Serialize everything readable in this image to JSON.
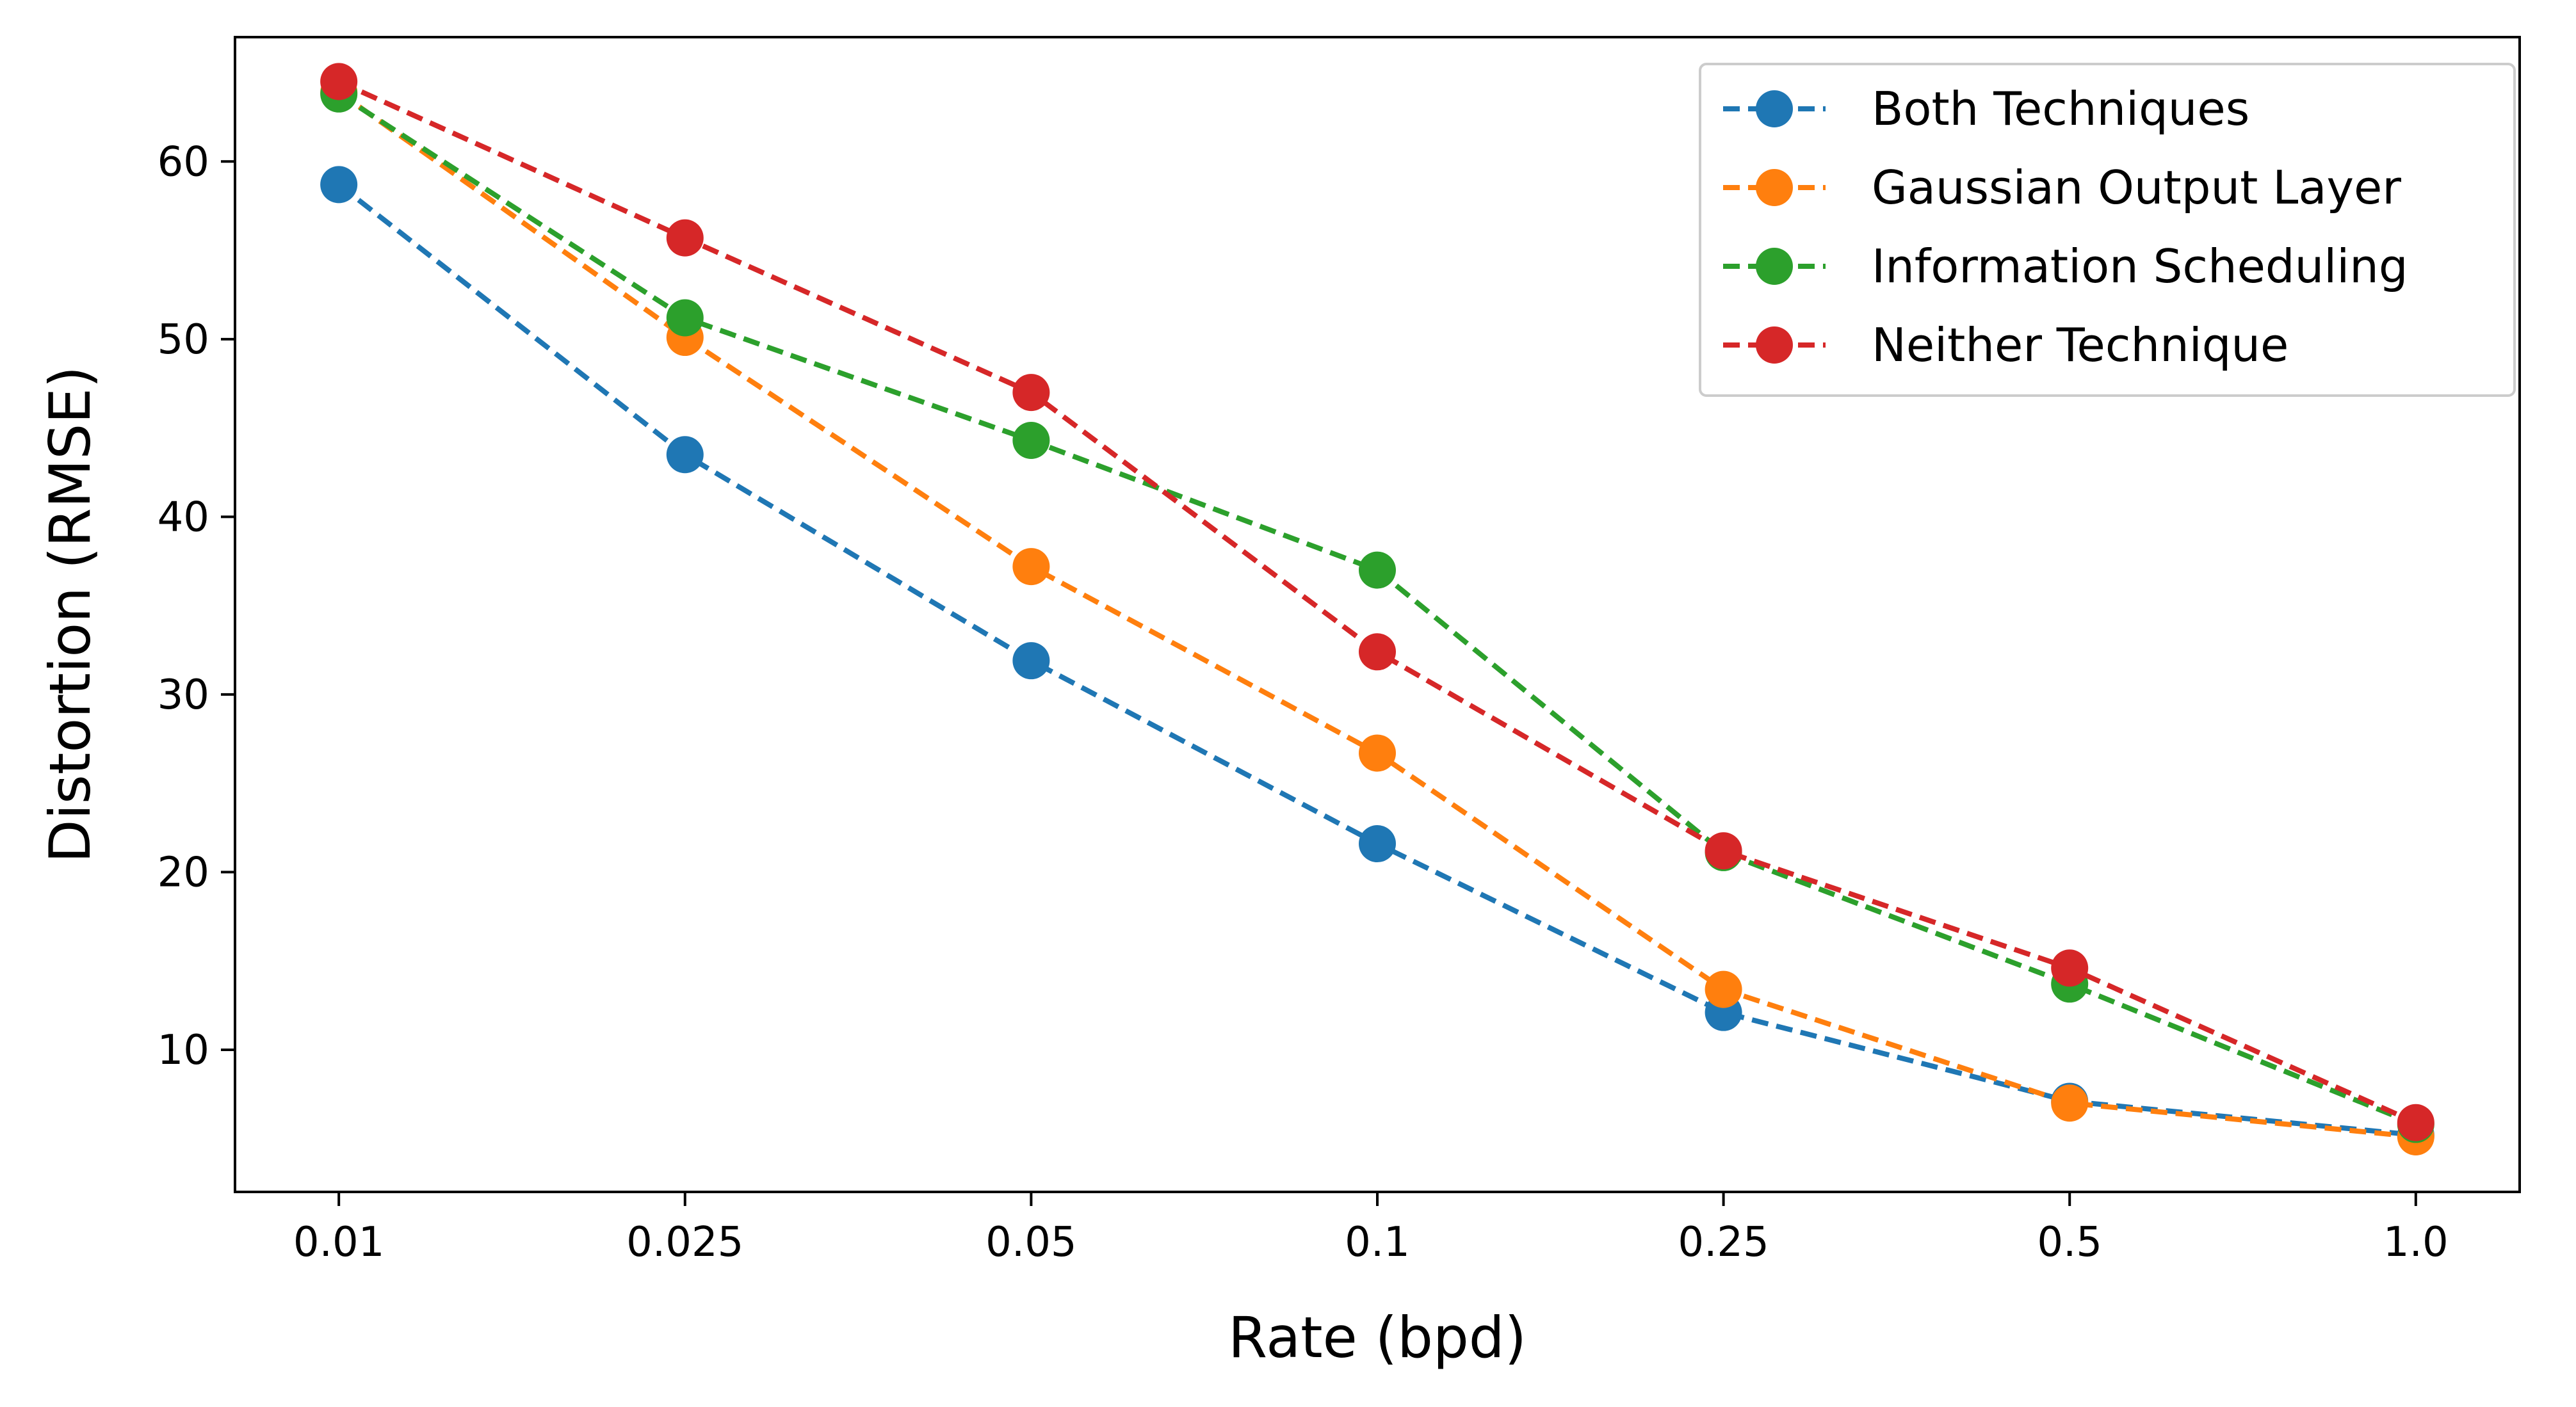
{
  "chart_data": {
    "type": "line",
    "title": "",
    "xlabel": "Rate (bpd)",
    "ylabel": "Distortion (RMSE)",
    "x": [
      "0.01",
      "0.025",
      "0.05",
      "0.1",
      "0.25",
      "0.5",
      "1.0"
    ],
    "x_scale": "categorical",
    "ylim": [
      2,
      67
    ],
    "yticks": [
      10,
      20,
      30,
      40,
      50,
      60
    ],
    "grid": false,
    "legend_position": "top-right",
    "line_style": "dashed",
    "marker": "circle",
    "series": [
      {
        "name": "Both Techniques",
        "color": "#1f77b4",
        "values": [
          58.7,
          43.5,
          31.9,
          21.6,
          12.1,
          7.1,
          5.2
        ]
      },
      {
        "name": "Gaussian Output Layer",
        "color": "#ff7f0e",
        "values": [
          63.9,
          50.1,
          37.2,
          26.7,
          13.4,
          7.0,
          5.1
        ]
      },
      {
        "name": "Information Scheduling",
        "color": "#2ca02c",
        "values": [
          63.8,
          51.2,
          44.3,
          37.0,
          21.1,
          13.7,
          5.8
        ]
      },
      {
        "name": "Neither Technique",
        "color": "#d62728",
        "values": [
          64.5,
          55.7,
          47.0,
          32.4,
          21.2,
          14.6,
          5.9
        ]
      }
    ]
  }
}
